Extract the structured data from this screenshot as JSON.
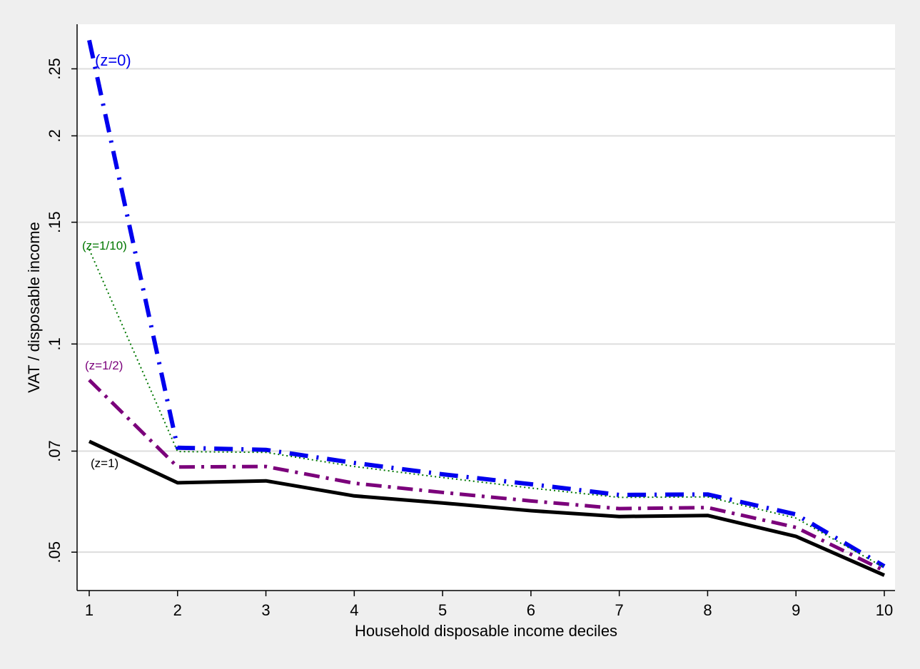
{
  "chart_data": {
    "type": "line",
    "title": "",
    "xlabel": "Household disposable income deciles",
    "ylabel": "VAT / disposable income",
    "y_scale": "log",
    "x": [
      1,
      2,
      3,
      4,
      5,
      6,
      7,
      8,
      9,
      10
    ],
    "xlim": [
      1,
      10
    ],
    "ylim": [
      0.044,
      0.29
    ],
    "x_ticks": [
      "1",
      "2",
      "3",
      "4",
      "5",
      "6",
      "7",
      "8",
      "9",
      "10"
    ],
    "y_ticks": [
      {
        "value": 0.05,
        "label": ".05"
      },
      {
        "value": 0.07,
        "label": ".07"
      },
      {
        "value": 0.1,
        "label": ".1"
      },
      {
        "value": 0.15,
        "label": ".15"
      },
      {
        "value": 0.2,
        "label": ".2"
      },
      {
        "value": 0.25,
        "label": ".25"
      }
    ],
    "grid": "horizontal",
    "legend": "none (inline series labels)",
    "series": [
      {
        "name": "(z=0)",
        "color": "#0000ee",
        "style": "dash-dot bold",
        "values": [
          0.275,
          0.0708,
          0.0703,
          0.0673,
          0.0648,
          0.0627,
          0.0605,
          0.0606,
          0.0567,
          0.0477
        ]
      },
      {
        "name": "(z=1/10)",
        "color": "#007700",
        "style": "dotted",
        "values": [
          0.137,
          0.0699,
          0.0697,
          0.0665,
          0.0641,
          0.0619,
          0.06,
          0.0601,
          0.056,
          0.0475
        ]
      },
      {
        "name": "(z=1/2)",
        "color": "#7b007b",
        "style": "long-dash-dot",
        "values": [
          0.0887,
          0.0664,
          0.0665,
          0.0629,
          0.061,
          0.0593,
          0.0578,
          0.058,
          0.0543,
          0.047
        ]
      },
      {
        "name": "(z=1)",
        "color": "#000000",
        "style": "solid",
        "values": [
          0.0723,
          0.063,
          0.0634,
          0.0603,
          0.0589,
          0.0574,
          0.0563,
          0.0565,
          0.0527,
          0.0463
        ]
      }
    ]
  }
}
